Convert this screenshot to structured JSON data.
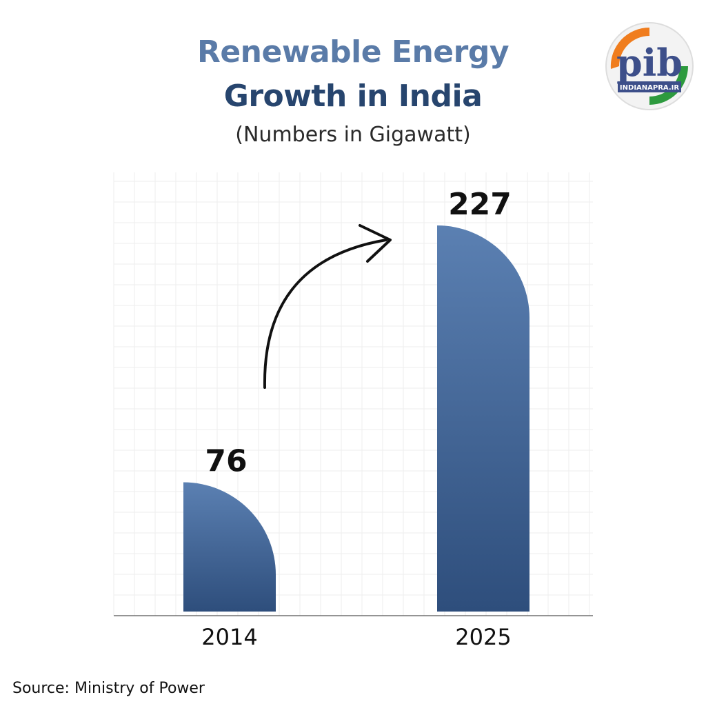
{
  "header": {
    "title_line1": "Renewable Energy",
    "title_line2": "Growth in India",
    "subtitle": "(Numbers in Gigawatt)"
  },
  "logo": {
    "text": "pib",
    "caption": "INDIANAPRA.IR"
  },
  "footer": {
    "source": "Source: Ministry of Power"
  },
  "colors": {
    "bar_top": "#5b80b2",
    "bar_bottom": "#2e4e7c",
    "grid": "#eeeeee",
    "axis": "#555555",
    "saffron": "#f07d1e",
    "green": "#2d9a3e",
    "logo_blue": "#3d4f8a"
  },
  "chart_data": {
    "type": "bar",
    "title": "Renewable Energy Growth in India",
    "subtitle": "(Numbers in Gigawatt)",
    "categories": [
      "2014",
      "2025"
    ],
    "values": [
      76,
      227
    ],
    "data_labels": [
      "76",
      "227"
    ],
    "unit": "Gigawatt",
    "xlabel": "",
    "ylabel": "",
    "ylim": [
      0,
      240
    ],
    "grid": true,
    "annotations": [
      "growth-arrow"
    ]
  }
}
